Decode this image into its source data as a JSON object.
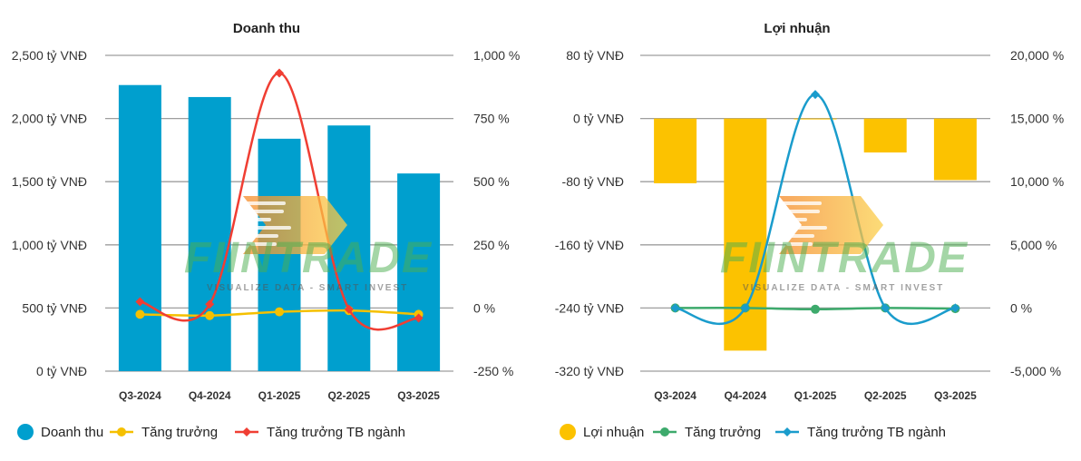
{
  "chart_data": [
    {
      "type": "bar+line",
      "title": "Doanh thu",
      "categories": [
        "Q3-2024",
        "Q4-2024",
        "Q1-2025",
        "Q2-2025",
        "Q3-2025"
      ],
      "bar_series": {
        "name": "Doanh thu",
        "values": [
          2265,
          2170,
          1840,
          1945,
          1565
        ]
      },
      "line_series": [
        {
          "name": "Tăng trưởng",
          "values": [
            -25,
            -30,
            -15,
            -10,
            -25
          ]
        },
        {
          "name": "Tăng trưởng TB ngành",
          "values": [
            25,
            15,
            930,
            -5,
            -40
          ]
        }
      ],
      "y_left": {
        "min": 0,
        "max": 2500,
        "ticks": [
          "2,500 tỷ VNĐ",
          "2,000 tỷ VNĐ",
          "1,500 tỷ VNĐ",
          "1,000 tỷ VNĐ",
          "500 tỷ VNĐ",
          "0 tỷ VNĐ"
        ]
      },
      "y_right": {
        "min": -250,
        "max": 1000,
        "ticks": [
          "1,000 %",
          "750 %",
          "500 %",
          "250 %",
          "0 %",
          "-250 %"
        ]
      },
      "legend": [
        "Doanh thu",
        "Tăng trưởng",
        "Tăng trưởng TB ngành"
      ],
      "colors": {
        "bar": "#009fce",
        "line1": "#f5c000",
        "line2": "#f03e33"
      }
    },
    {
      "type": "bar+line",
      "title": "Lợi nhuận",
      "categories": [
        "Q3-2024",
        "Q4-2024",
        "Q1-2025",
        "Q2-2025",
        "Q3-2025"
      ],
      "bar_series": {
        "name": "Lợi nhuận",
        "values": [
          -82,
          -294,
          0,
          -43,
          -78
        ]
      },
      "line_series": [
        {
          "name": "Tăng trưởng",
          "values": [
            0,
            0,
            -100,
            0,
            -50
          ]
        },
        {
          "name": "Tăng trưởng TB ngành",
          "values": [
            0,
            0,
            16900,
            0,
            0
          ]
        }
      ],
      "y_left": {
        "min": -320,
        "max": 80,
        "ticks": [
          "80 tỷ VNĐ",
          "0 tỷ VNĐ",
          "-80 tỷ VNĐ",
          "-160 tỷ VNĐ",
          "-240 tỷ VNĐ",
          "-320 tỷ VNĐ"
        ]
      },
      "y_right": {
        "min": -5000,
        "max": 20000,
        "ticks": [
          "20,000 %",
          "15,000 %",
          "10,000 %",
          "5,000 %",
          "0 %",
          "-5,000 %"
        ]
      },
      "legend": [
        "Lợi nhuận",
        "Tăng trưởng",
        "Tăng trưởng TB ngành"
      ],
      "colors": {
        "bar": "#fcc200",
        "line1": "#3daa6c",
        "line2": "#1a9ccc"
      }
    }
  ],
  "watermark": {
    "brand": "FIINTRADE",
    "tagline": "VISUALIZE DATA - SMART INVEST"
  }
}
